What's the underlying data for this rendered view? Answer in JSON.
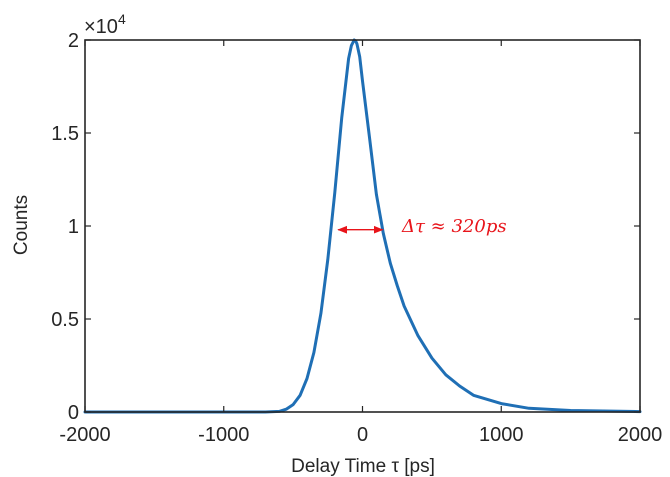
{
  "chart_data": {
    "type": "line",
    "title": "",
    "xlabel": "Delay Time τ [ps]",
    "ylabel": "Counts",
    "xlim": [
      -2000,
      2000
    ],
    "ylim": [
      0,
      20000
    ],
    "x_ticks": [
      -2000,
      -1000,
      0,
      1000,
      2000
    ],
    "x_tick_labels": [
      "-2000",
      "-1000",
      "0",
      "1000",
      "2000"
    ],
    "y_ticks": [
      0,
      5000,
      10000,
      15000,
      20000
    ],
    "y_tick_labels": [
      "0",
      "0.5",
      "1",
      "1.5",
      "2"
    ],
    "y_multiplier_label": "×10",
    "y_multiplier_exponent": "4",
    "grid": false,
    "series": [
      {
        "color": "#1f6fb5",
        "x": [
          -2000,
          -1500,
          -1000,
          -700,
          -600,
          -550,
          -500,
          -450,
          -400,
          -350,
          -300,
          -250,
          -200,
          -150,
          -100,
          -80,
          -60,
          -50,
          -40,
          -20,
          0,
          50,
          100,
          150,
          200,
          250,
          300,
          400,
          500,
          600,
          700,
          800,
          1000,
          1200,
          1500,
          2000
        ],
        "y": [
          0,
          0,
          0,
          0,
          30,
          150,
          400,
          900,
          1800,
          3200,
          5300,
          8200,
          11800,
          15800,
          19000,
          19700,
          20000,
          19950,
          19800,
          19100,
          17800,
          14800,
          11700,
          9600,
          8000,
          6800,
          5700,
          4100,
          2900,
          2000,
          1400,
          900,
          450,
          200,
          80,
          20
        ]
      }
    ],
    "annotation": {
      "text": "Δτ ≈ 320ps",
      "color": "#e8141a",
      "arrow_x": [
        -175,
        145
      ],
      "arrow_y": 9800
    }
  }
}
